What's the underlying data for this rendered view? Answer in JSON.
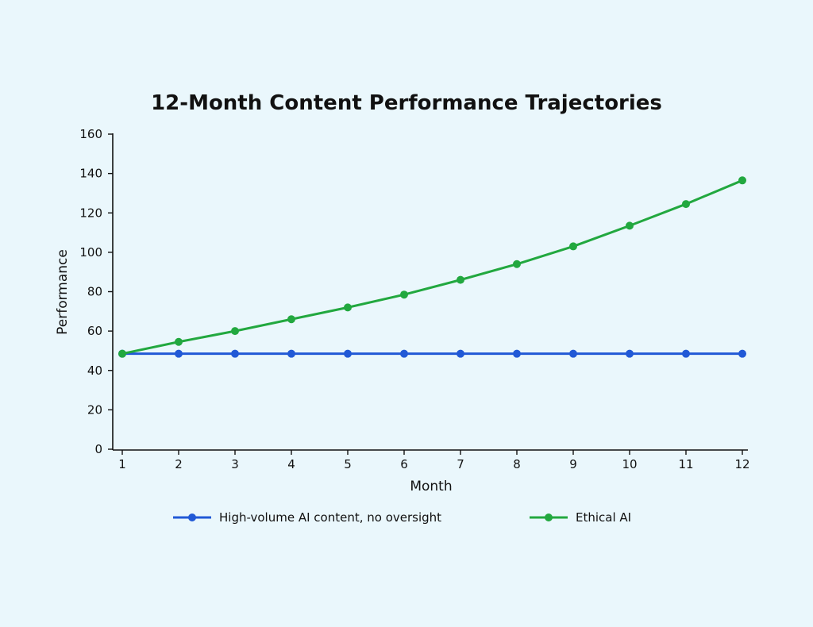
{
  "chart_data": {
    "type": "line",
    "title": "12-Month Content Performance Trajectories",
    "xlabel": "Month",
    "ylabel": "Performance",
    "x": [
      1,
      2,
      3,
      4,
      5,
      6,
      7,
      8,
      9,
      10,
      11,
      12
    ],
    "xticks": [
      "1",
      "2",
      "3",
      "4",
      "5",
      "6",
      "7",
      "8",
      "9",
      "10",
      "11",
      "12"
    ],
    "yticks": [
      "0",
      "20",
      "40",
      "60",
      "80",
      "100",
      "120",
      "140",
      "160"
    ],
    "ylim": [
      0,
      160
    ],
    "xlim": [
      1,
      12
    ],
    "grid": false,
    "legend_position": "bottom",
    "series": [
      {
        "name": "High-volume AI content, no oversight",
        "color": "#2159d6",
        "values": [
          48.5,
          48.5,
          48.5,
          48.5,
          48.5,
          48.5,
          48.5,
          48.5,
          48.5,
          48.5,
          48.5,
          48.5
        ]
      },
      {
        "name": "Ethical AI",
        "color": "#22a83f",
        "values": [
          48.5,
          54.5,
          60,
          66,
          72,
          78.5,
          86,
          94,
          103,
          113.5,
          124.5,
          136.5
        ]
      }
    ]
  }
}
